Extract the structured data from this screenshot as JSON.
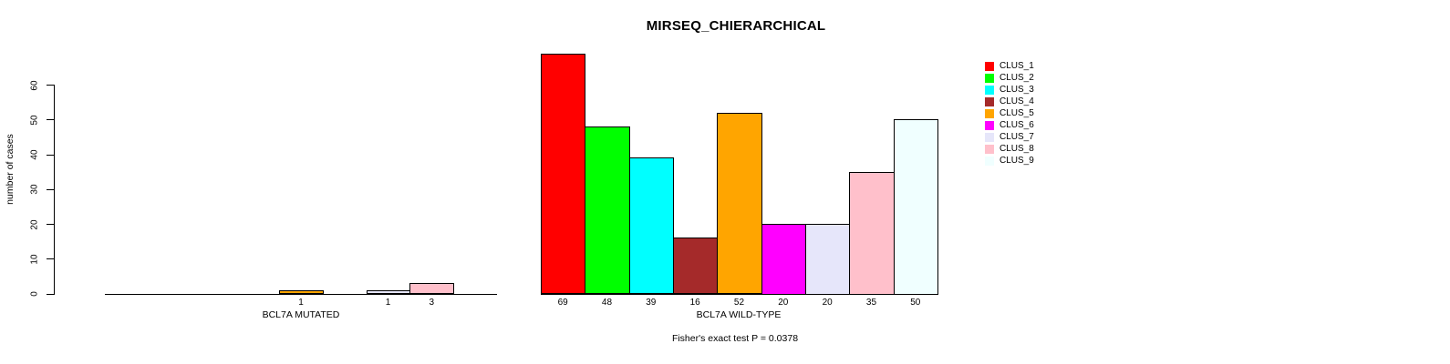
{
  "chart_data": {
    "type": "bar",
    "title": "MIRSEQ_CHIERARCHICAL",
    "ylabel": "number of cases",
    "ylim": [
      0,
      60
    ],
    "yticks": [
      0,
      10,
      20,
      30,
      40,
      50,
      60
    ],
    "grid": false,
    "legend_position": "right",
    "categories": [
      "CLUS_1",
      "CLUS_2",
      "CLUS_3",
      "CLUS_4",
      "CLUS_5",
      "CLUS_6",
      "CLUS_7",
      "CLUS_8",
      "CLUS_9"
    ],
    "colors": [
      "#FF0000",
      "#00FF00",
      "#00FFFF",
      "#A52A2A",
      "#FFA500",
      "#FF00FF",
      "#E6E6FA",
      "#FFC0CB",
      "#F0FFFF"
    ],
    "series": [
      {
        "name": "BCL7A MUTATED",
        "values": [
          0,
          0,
          0,
          0,
          1,
          0,
          1,
          3,
          0
        ]
      },
      {
        "name": "BCL7A WILD-TYPE",
        "values": [
          69,
          48,
          39,
          16,
          52,
          20,
          20,
          35,
          50
        ]
      }
    ],
    "footnote": "Fisher's exact test P = 0.0378"
  }
}
